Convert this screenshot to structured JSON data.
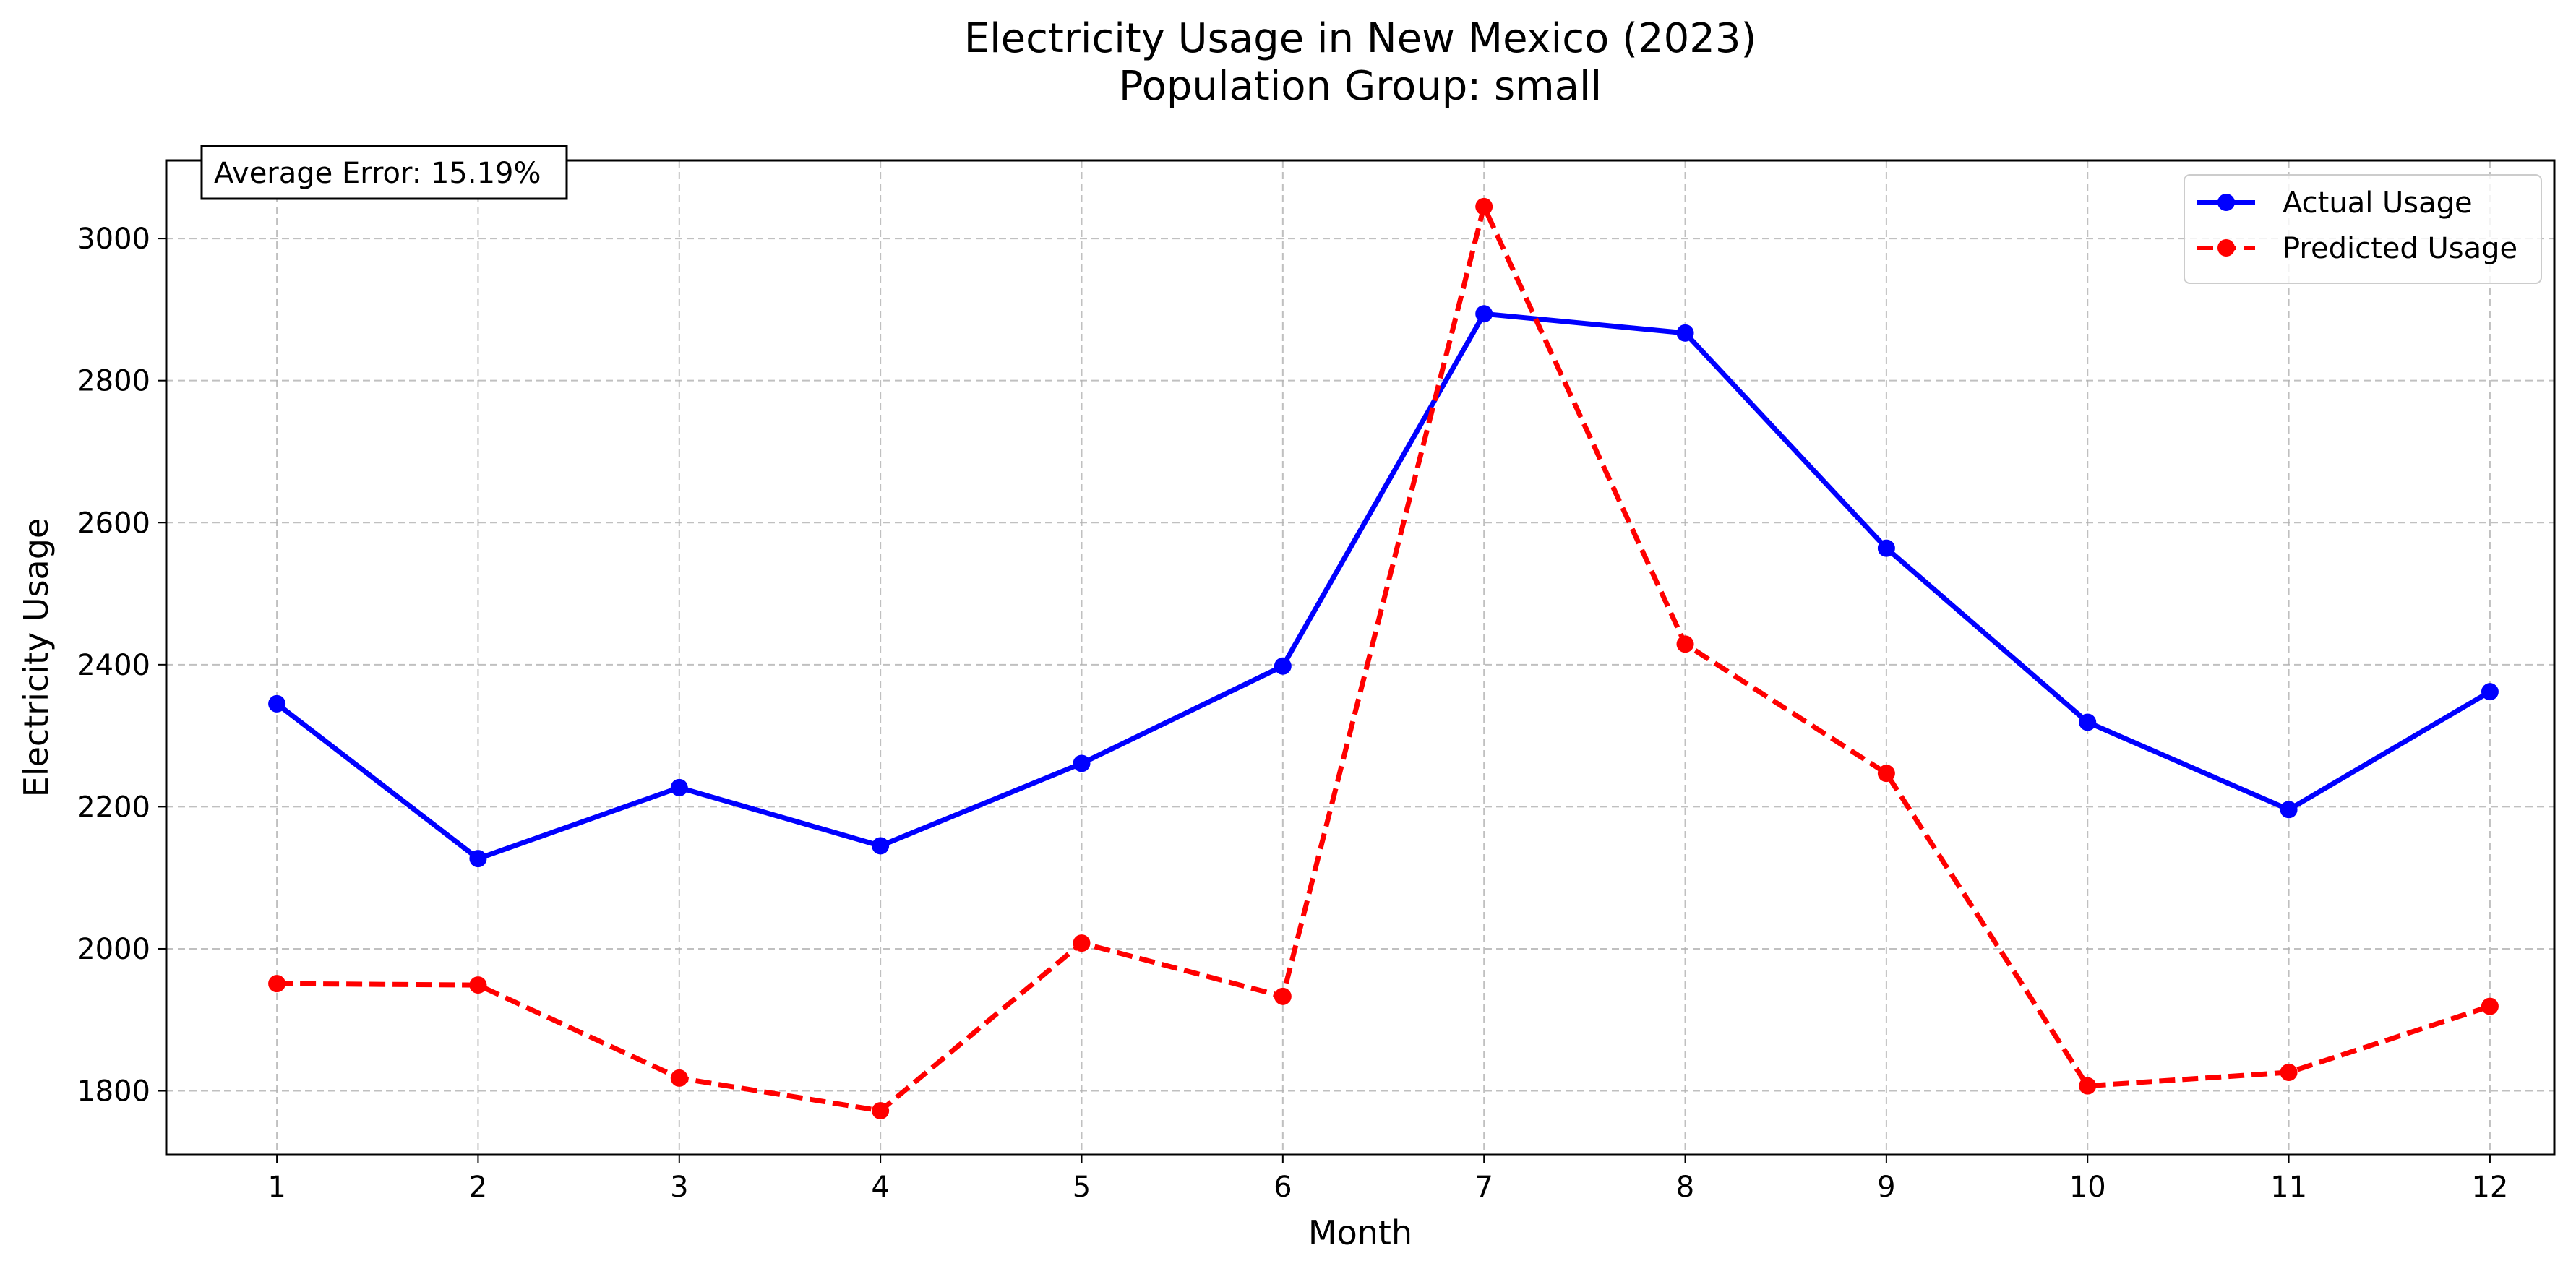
{
  "chart_data": {
    "type": "line",
    "title": "Electricity Usage in New Mexico (2023)",
    "subtitle": "Population Group: small",
    "xlabel": "Month",
    "ylabel": "Electricity Usage",
    "x": [
      1,
      2,
      3,
      4,
      5,
      6,
      7,
      8,
      9,
      10,
      11,
      12
    ],
    "xlim": [
      0.45,
      12.32
    ],
    "ylim": [
      1710,
      3110
    ],
    "yticks": [
      1800,
      2000,
      2200,
      2400,
      2600,
      2800,
      3000
    ],
    "grid": true,
    "legend_position": "top-right",
    "annotation": "Average Error: 15.19%",
    "series": [
      {
        "name": "Actual Usage",
        "color": "#0000ff",
        "style": "solid",
        "marker": "circle",
        "values": [
          2345,
          2127,
          2227,
          2145,
          2261,
          2398,
          2894,
          2867,
          2564,
          2319,
          2196,
          2362
        ]
      },
      {
        "name": "Predicted Usage",
        "color": "#ff0000",
        "style": "dashed",
        "marker": "circle",
        "values": [
          1951,
          1949,
          1818,
          1772,
          2008,
          1933,
          3045,
          2429,
          2247,
          1807,
          1826,
          1919
        ]
      }
    ]
  }
}
